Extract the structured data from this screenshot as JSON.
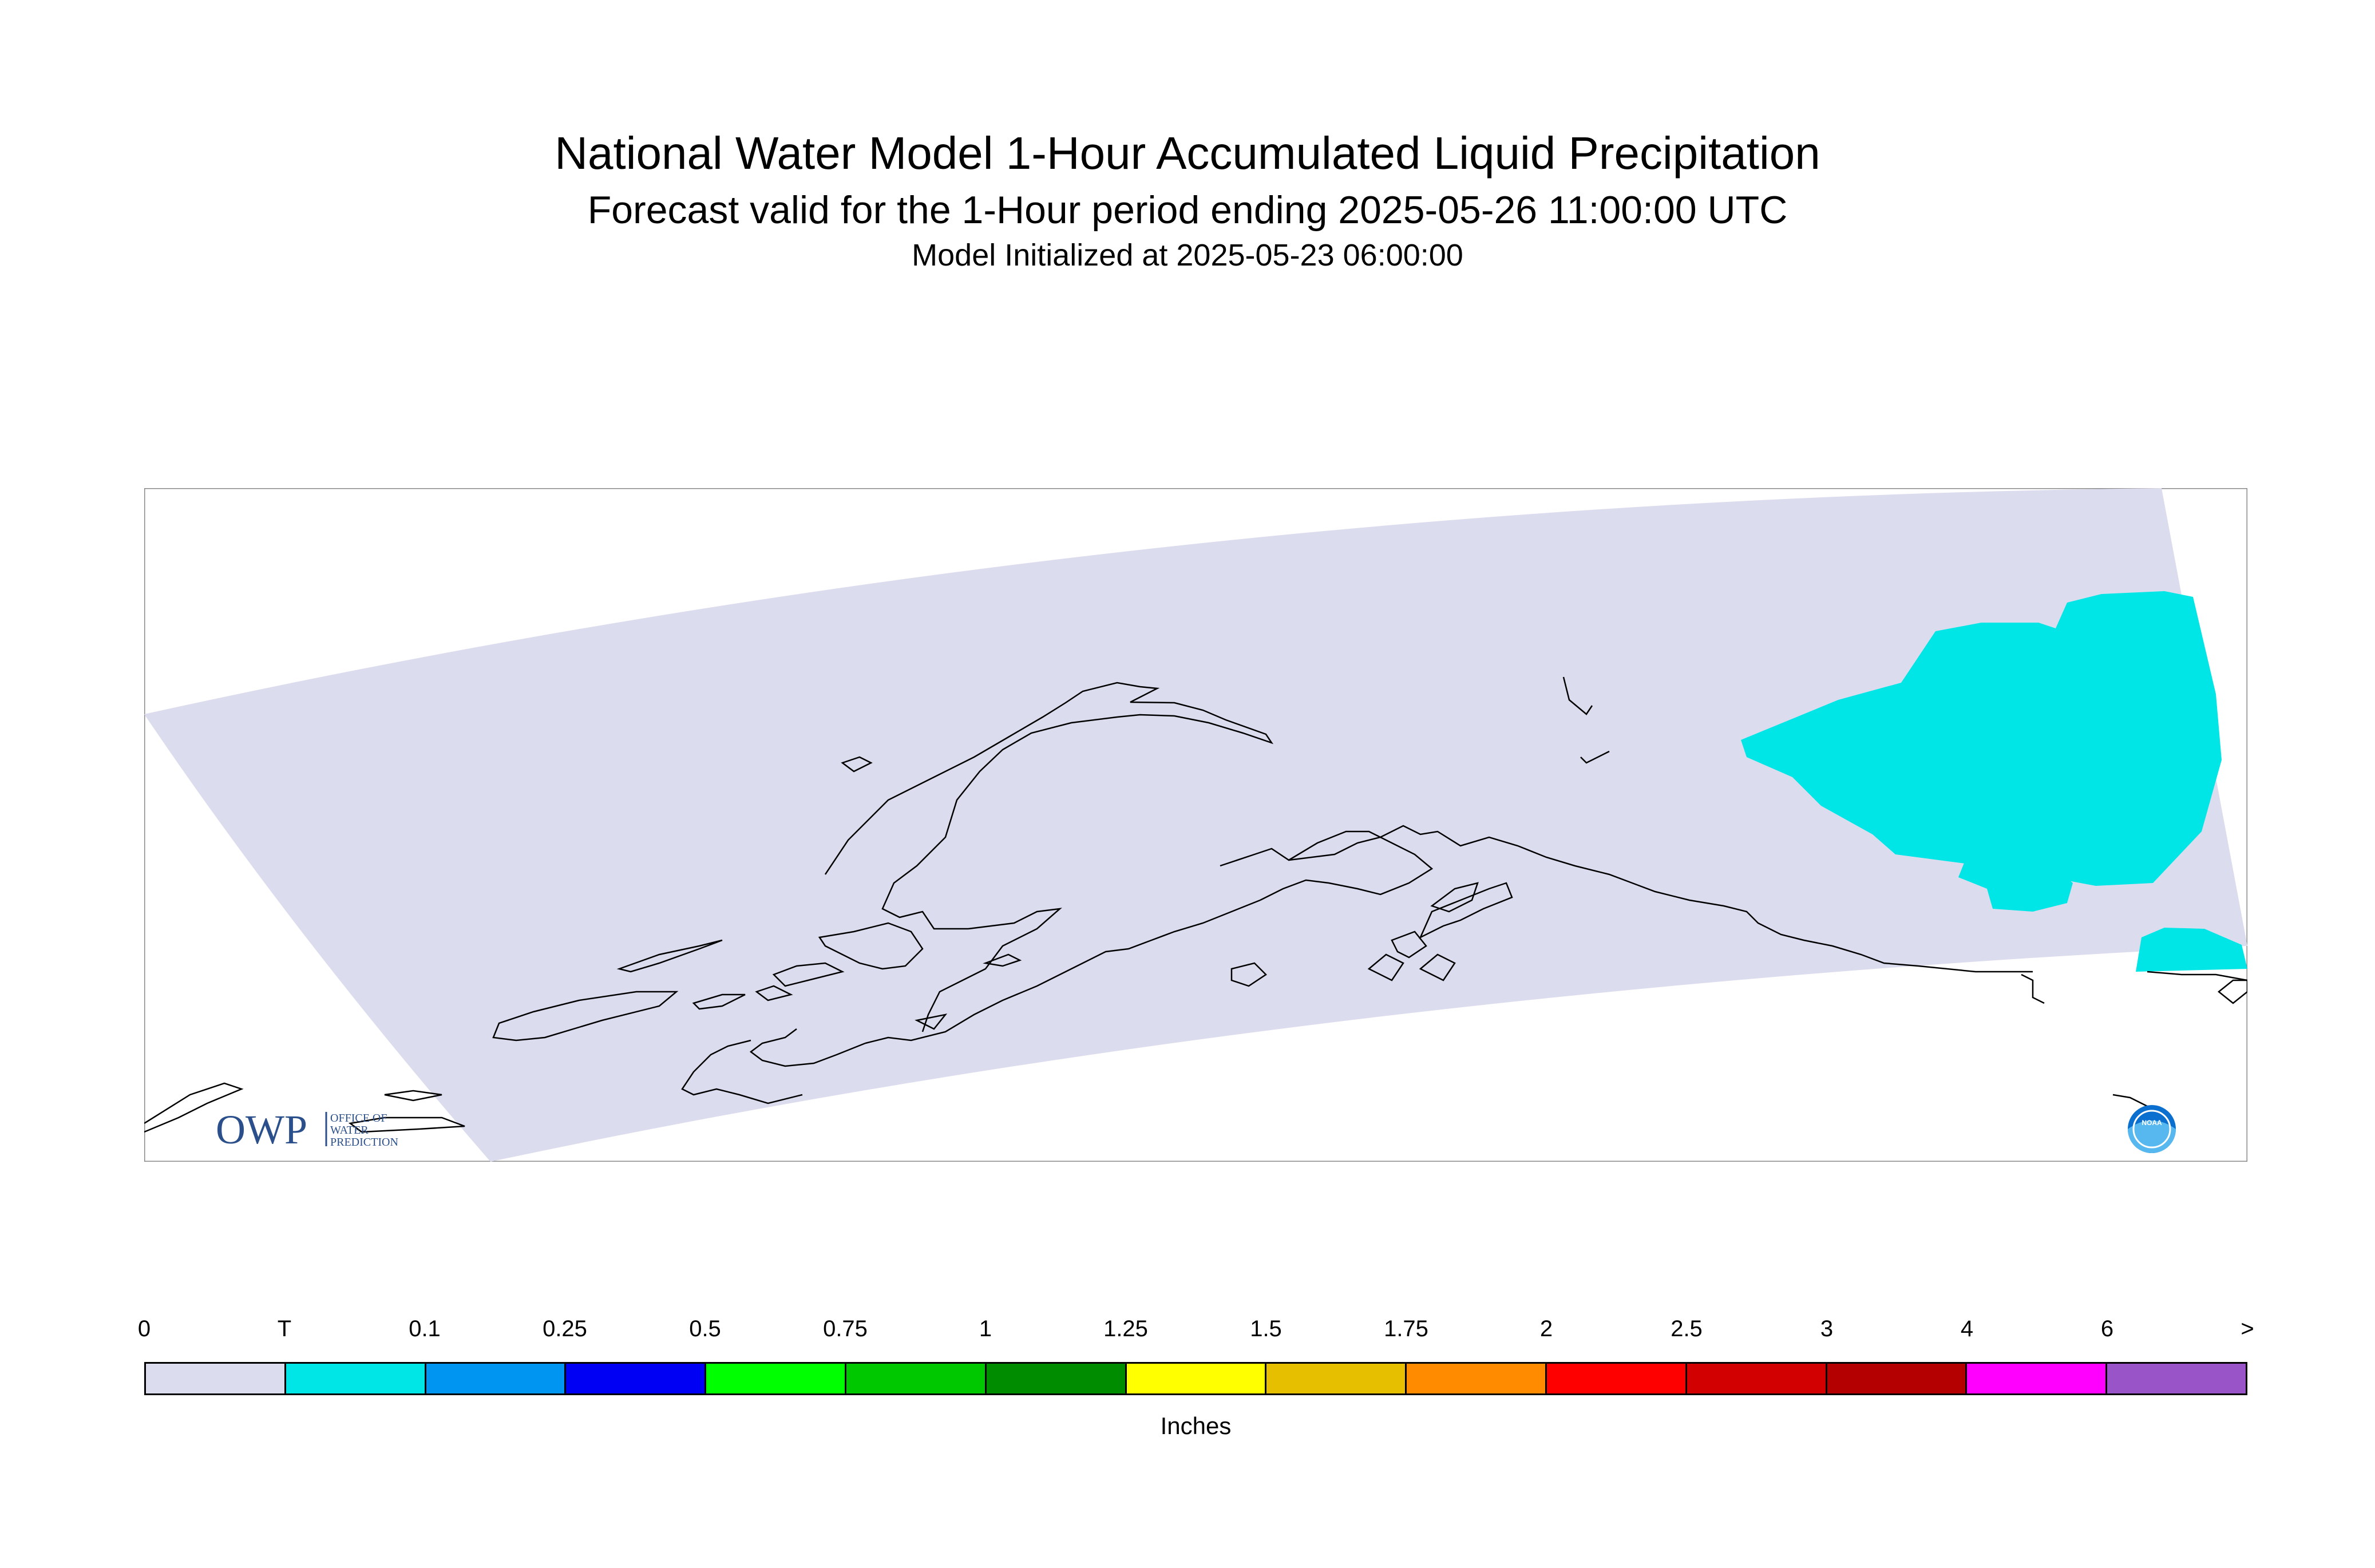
{
  "header": {
    "title": "National Water Model 1-Hour Accumulated Liquid Precipitation",
    "subtitle": "Forecast valid for the 1-Hour period ending 2025-05-26 11:00:00 UTC",
    "init": "Model Initialized at 2025-05-23 06:00:00"
  },
  "map": {
    "region": "Alaska",
    "domain_fill_color": "#dcdcef",
    "precip_fill_color": "#00e6e6",
    "coastline_color": "#000000",
    "logos": {
      "owp_text": "OWP",
      "owp_sub": [
        "OFFICE OF",
        "WATER",
        "PREDICTION"
      ],
      "noaa_text": "NOAA"
    }
  },
  "legend": {
    "ticks": [
      "0",
      "T",
      "0.1",
      "0.25",
      "0.5",
      "0.75",
      "1",
      "1.25",
      "1.5",
      "1.75",
      "2",
      "2.5",
      "3",
      "4",
      "6",
      ">"
    ],
    "colors": [
      "#dcdcef",
      "#00e6e6",
      "#0095f0",
      "#0000f5",
      "#00ff00",
      "#00c800",
      "#008c00",
      "#ffff00",
      "#e6c000",
      "#ff8c00",
      "#ff0000",
      "#d20000",
      "#b40000",
      "#ff00ff",
      "#9955c8"
    ],
    "units": "Inches"
  }
}
